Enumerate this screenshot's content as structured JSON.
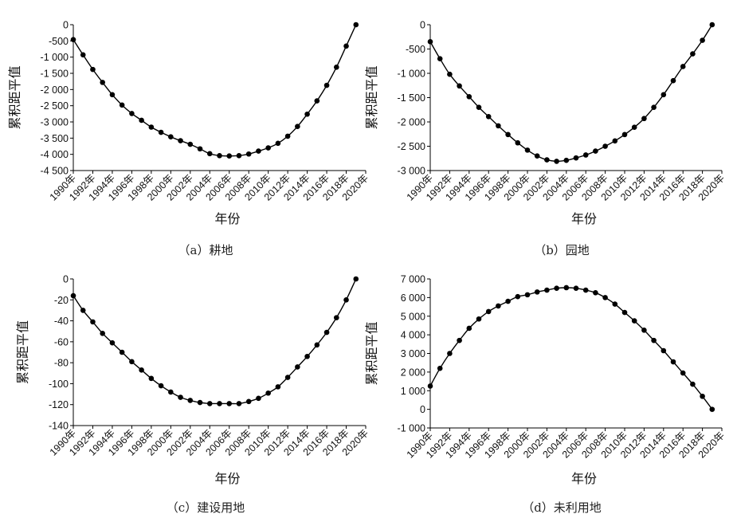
{
  "chart_data": [
    {
      "type": "line",
      "caption": "（a）耕地",
      "xlabel": "年份",
      "ylabel": "累积距平值",
      "x_tick_labels": [
        "1990年",
        "1992年",
        "1994年",
        "1996年",
        "1998年",
        "2000年",
        "2002年",
        "2004年",
        "2006年",
        "2008年",
        "2010年",
        "2012年",
        "2014年",
        "2016年",
        "2018年",
        "2020年"
      ],
      "y_ticks": [
        0,
        -500,
        -1000,
        -1500,
        -2000,
        -2500,
        -3000,
        -3500,
        -4000,
        -4500
      ],
      "y_tick_labels": [
        "0",
        "-500",
        "-1 000",
        "-1 500",
        "-2 000",
        "-2 500",
        "-3 000",
        "-3 500",
        "-4 000",
        "-4 500"
      ],
      "ylim": [
        -4500,
        0
      ],
      "series": [
        {
          "x": [
            1990,
            1991,
            1992,
            1993,
            1994,
            1995,
            1996,
            1997,
            1998,
            1999,
            2000,
            2001,
            2002,
            2003,
            2004,
            2005,
            2006,
            2007,
            2008,
            2009,
            2010,
            2011,
            2012,
            2013,
            2014,
            2015,
            2016,
            2017,
            2018,
            2019
          ],
          "values": [
            -460,
            -930,
            -1380,
            -1780,
            -2160,
            -2480,
            -2740,
            -2950,
            -3160,
            -3320,
            -3460,
            -3580,
            -3690,
            -3830,
            -3980,
            -4040,
            -4050,
            -4040,
            -3990,
            -3900,
            -3800,
            -3660,
            -3440,
            -3140,
            -2760,
            -2350,
            -1870,
            -1310,
            -660,
            0
          ]
        }
      ]
    },
    {
      "type": "line",
      "caption": "（b）园地",
      "xlabel": "年份",
      "ylabel": "累积距平值",
      "x_tick_labels": [
        "1990年",
        "1992年",
        "1994年",
        "1996年",
        "1998年",
        "2000年",
        "2002年",
        "2004年",
        "2006年",
        "2008年",
        "2010年",
        "2012年",
        "2014年",
        "2016年",
        "2018年",
        "2020年"
      ],
      "y_ticks": [
        0,
        -500,
        -1000,
        -1500,
        -2000,
        -2500,
        -3000
      ],
      "y_tick_labels": [
        "0",
        "-500",
        "-1 000",
        "-1 500",
        "-2 000",
        "-2 500",
        "-3 000"
      ],
      "ylim": [
        -3000,
        0
      ],
      "series": [
        {
          "x": [
            1990,
            1991,
            1992,
            1993,
            1994,
            1995,
            1996,
            1997,
            1998,
            1999,
            2000,
            2001,
            2002,
            2003,
            2004,
            2005,
            2006,
            2007,
            2008,
            2009,
            2010,
            2011,
            2012,
            2013,
            2014,
            2015,
            2016,
            2017,
            2018,
            2019
          ],
          "values": [
            -350,
            -700,
            -1020,
            -1260,
            -1480,
            -1700,
            -1890,
            -2080,
            -2260,
            -2430,
            -2580,
            -2700,
            -2780,
            -2810,
            -2790,
            -2740,
            -2680,
            -2600,
            -2500,
            -2390,
            -2260,
            -2110,
            -1930,
            -1700,
            -1440,
            -1150,
            -860,
            -600,
            -320,
            0
          ]
        }
      ]
    },
    {
      "type": "line",
      "caption": "（c）建设用地",
      "xlabel": "年份",
      "ylabel": "累积距平值",
      "x_tick_labels": [
        "1990年",
        "1992年",
        "1994年",
        "1996年",
        "1998年",
        "2000年",
        "2002年",
        "2004年",
        "2006年",
        "2008年",
        "2010年",
        "2012年",
        "2014年",
        "2016年",
        "2018年",
        "2020年"
      ],
      "y_ticks": [
        0,
        -20,
        -40,
        -60,
        -80,
        -100,
        -120,
        -140
      ],
      "y_tick_labels": [
        "0",
        "-20",
        "-40",
        "-60",
        "-80",
        "-100",
        "-120",
        "-140"
      ],
      "ylim": [
        -140,
        0
      ],
      "series": [
        {
          "x": [
            1990,
            1991,
            1992,
            1993,
            1994,
            1995,
            1996,
            1997,
            1998,
            1999,
            2000,
            2001,
            2002,
            2003,
            2004,
            2005,
            2006,
            2007,
            2008,
            2009,
            2010,
            2011,
            2012,
            2013,
            2014,
            2015,
            2016,
            2017,
            2018,
            2019
          ],
          "values": [
            -16,
            -30,
            -41,
            -52,
            -61,
            -70,
            -79,
            -87,
            -95,
            -102,
            -108,
            -113,
            -116,
            -118,
            -119,
            -119,
            -119,
            -119,
            -117,
            -114,
            -109,
            -103,
            -94,
            -84,
            -74,
            -63,
            -51,
            -37,
            -20,
            0
          ]
        }
      ]
    },
    {
      "type": "line",
      "caption": "（d）未利用地",
      "xlabel": "年份",
      "ylabel": "累积距平值",
      "x_tick_labels": [
        "1990年",
        "1992年",
        "1994年",
        "1996年",
        "1998年",
        "2000年",
        "2002年",
        "2004年",
        "2006年",
        "2008年",
        "2010年",
        "2012年",
        "2014年",
        "2016年",
        "2018年",
        "2020年"
      ],
      "y_ticks": [
        7000,
        6000,
        5000,
        4000,
        3000,
        2000,
        1000,
        0,
        -1000
      ],
      "y_tick_labels": [
        "7 000",
        "6 000",
        "5 000",
        "4 000",
        "3 000",
        "2 000",
        "1 000",
        "0",
        "-1 000"
      ],
      "ylim": [
        -1000,
        7000
      ],
      "series": [
        {
          "x": [
            1990,
            1991,
            1992,
            1993,
            1994,
            1995,
            1996,
            1997,
            1998,
            1999,
            2000,
            2001,
            2002,
            2003,
            2004,
            2005,
            2006,
            2007,
            2008,
            2009,
            2010,
            2011,
            2012,
            2013,
            2014,
            2015,
            2016,
            2017,
            2018,
            2019
          ],
          "values": [
            1250,
            2200,
            3000,
            3700,
            4350,
            4850,
            5250,
            5550,
            5800,
            6050,
            6150,
            6300,
            6400,
            6500,
            6530,
            6500,
            6400,
            6260,
            6000,
            5650,
            5200,
            4750,
            4250,
            3700,
            3150,
            2550,
            1950,
            1350,
            700,
            0
          ]
        }
      ]
    }
  ]
}
